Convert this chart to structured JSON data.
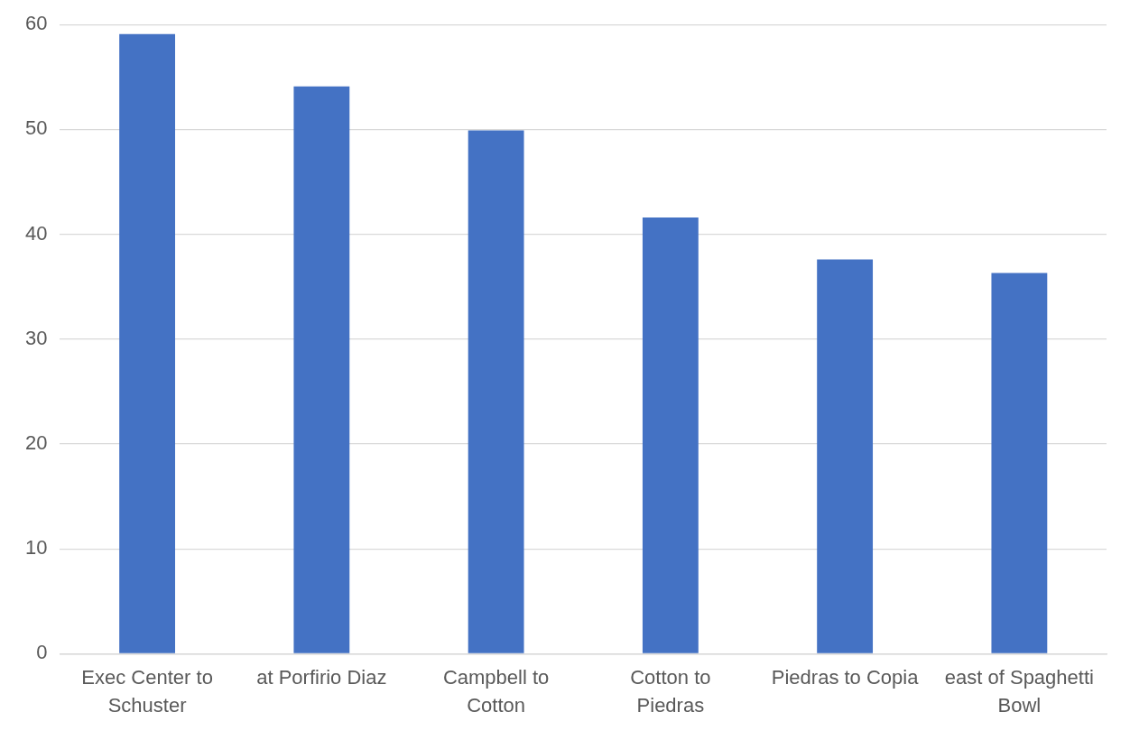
{
  "chart_data": {
    "type": "bar",
    "categories": [
      "Exec Center to Schuster",
      "at Porfirio Diaz",
      "Campbell to Cotton",
      "Cotton to Piedras",
      "Piedras to Copia",
      "east of Spaghetti Bowl"
    ],
    "values": [
      59.1,
      54.1,
      49.9,
      41.6,
      37.6,
      36.3
    ],
    "color": "#4472c4",
    "ylim": [
      0,
      60
    ],
    "yticks": [
      0,
      10,
      20,
      30,
      40,
      50,
      60
    ],
    "grid": "y",
    "legend": false
  }
}
